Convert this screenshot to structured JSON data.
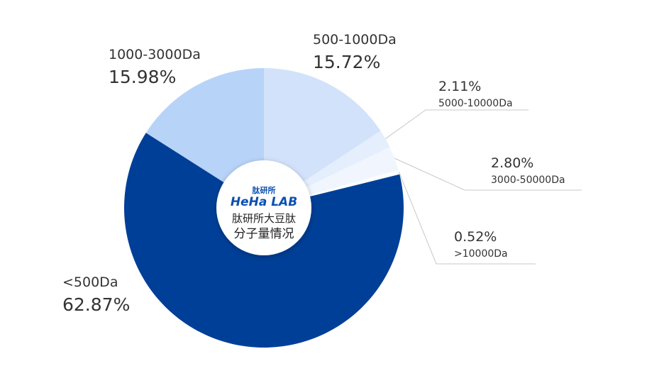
{
  "chart_data": {
    "type": "donut",
    "categories": [
      "500-1000Da",
      "5000-10000Da",
      "3000-50000Da",
      ">10000Da",
      "<500Da",
      "1000-3000Da"
    ],
    "values": [
      15.72,
      2.11,
      2.8,
      0.52,
      62.87,
      15.98
    ],
    "value_labels": [
      "15.72%",
      "2.11%",
      "2.80%",
      "0.52%",
      "62.87%",
      "15.98%"
    ],
    "colors": [
      "#d2e2fa",
      "#e4eefc",
      "#f1f6fe",
      "#fbfdff",
      "#003f98",
      "#b8d3f8"
    ],
    "center": {
      "logo_small": "肽研所",
      "logo": "HeHa LAB",
      "line1": "肽研所大豆肽",
      "line2": "分子量情况"
    }
  }
}
